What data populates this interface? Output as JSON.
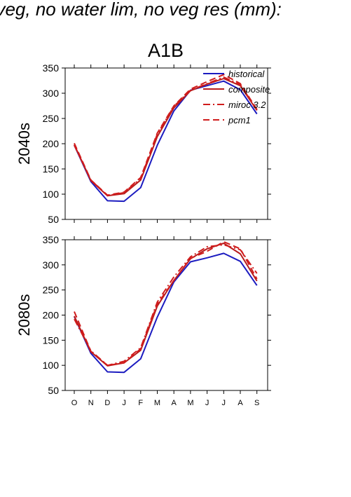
{
  "page": {
    "title": "f veg, no water lim, no veg res (mm):"
  },
  "chart_data": [
    {
      "type": "line",
      "title": "A1B",
      "ylabel": "2040s",
      "xlabel": "",
      "categories": [
        "O",
        "N",
        "D",
        "J",
        "F",
        "M",
        "A",
        "M",
        "J",
        "J",
        "A",
        "S"
      ],
      "ylim": [
        50,
        350
      ],
      "yticks": [
        50,
        100,
        150,
        200,
        250,
        300,
        350
      ],
      "grid": false,
      "legend": "top-right",
      "series": [
        {
          "name": "historical",
          "color": "#1c1cc0",
          "dash": "solid",
          "values": [
            197,
            125,
            87,
            86,
            113,
            197,
            265,
            306,
            315,
            324,
            307,
            259
          ]
        },
        {
          "name": "composite",
          "color": "#b81c1c",
          "dash": "solid",
          "values": [
            198,
            127,
            97,
            101,
            128,
            214,
            271,
            305,
            318,
            329,
            315,
            266
          ]
        },
        {
          "name": "miroc 3.2",
          "color": "#d01c1c",
          "dash": "dashdot",
          "values": [
            197,
            128,
            97,
            103,
            131,
            219,
            274,
            306,
            319,
            332,
            317,
            267
          ]
        },
        {
          "name": "pcm1",
          "color": "#d01c1c",
          "dash": "dash",
          "values": [
            201,
            128,
            98,
            104,
            133,
            221,
            275,
            308,
            323,
            337,
            319,
            268
          ]
        }
      ]
    },
    {
      "type": "line",
      "title": "",
      "ylabel": "2080s",
      "xlabel": "",
      "categories": [
        "O",
        "N",
        "D",
        "J",
        "F",
        "M",
        "A",
        "M",
        "J",
        "J",
        "A",
        "S"
      ],
      "ylim": [
        50,
        350
      ],
      "yticks": [
        50,
        100,
        150,
        200,
        250,
        300,
        350
      ],
      "grid": false,
      "legend": "none",
      "series": [
        {
          "name": "historical",
          "color": "#1c1cc0",
          "dash": "solid",
          "values": [
            197,
            124,
            87,
            86,
            113,
            196,
            266,
            306,
            314,
            323,
            307,
            259
          ]
        },
        {
          "name": "composite",
          "color": "#b81c1c",
          "dash": "solid",
          "values": [
            198,
            127,
            99,
            105,
            130,
            218,
            269,
            312,
            332,
            343,
            322,
            268
          ]
        },
        {
          "name": "miroc 3.2",
          "color": "#d01c1c",
          "dash": "dashdot",
          "values": [
            192,
            129,
            100,
            108,
            135,
            226,
            276,
            316,
            336,
            340,
            330,
            283
          ]
        },
        {
          "name": "pcm1",
          "color": "#d01c1c",
          "dash": "dash",
          "values": [
            207,
            128,
            100,
            105,
            133,
            222,
            269,
            313,
            327,
            346,
            332,
            272
          ]
        }
      ]
    }
  ]
}
